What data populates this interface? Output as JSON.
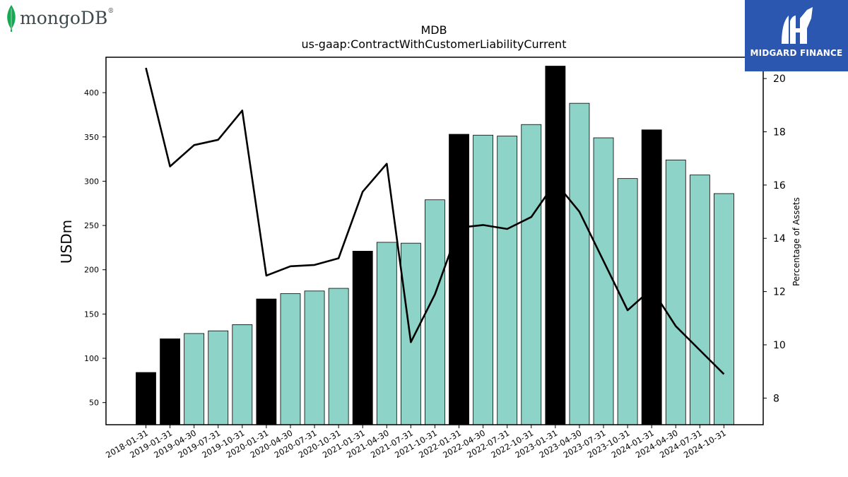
{
  "logos": {
    "left": {
      "text": "mongoDB",
      "registered": "®",
      "icon": "leaf-icon",
      "color": "#13aa52"
    },
    "right": {
      "text": "MIDGARD FINANCE",
      "icon": "midgard-logo-icon",
      "background": "#2b57b0"
    }
  },
  "chart_data": {
    "type": "bar",
    "title": "MDB",
    "subtitle": "us-gaap:ContractWithCustomerLiabilityCurrent",
    "ylabel": "USDm",
    "y2label": "Percentage of Assets",
    "ylim": [
      25,
      440
    ],
    "y2lim": [
      7,
      20.8
    ],
    "yticks": [
      50,
      100,
      150,
      200,
      250,
      300,
      350,
      400
    ],
    "y2ticks": [
      8,
      10,
      12,
      14,
      16,
      18,
      20
    ],
    "categories": [
      "2018-01-31",
      "2019-01-31",
      "2019-04-30",
      "2019-07-31",
      "2019-10-31",
      "2020-01-31",
      "2020-04-30",
      "2020-07-31",
      "2020-10-31",
      "2021-01-31",
      "2021-04-30",
      "2021-07-31",
      "2021-10-31",
      "2022-01-31",
      "2022-04-30",
      "2022-07-31",
      "2022-10-31",
      "2023-01-31",
      "2023-04-30",
      "2023-07-31",
      "2023-10-31",
      "2024-01-31",
      "2024-04-30",
      "2024-07-31",
      "2024-10-31"
    ],
    "values": [
      84,
      122,
      128,
      131,
      138,
      167,
      173,
      176,
      179,
      221,
      231,
      230,
      279,
      353,
      352,
      351,
      364,
      430,
      388,
      349,
      303,
      358,
      324,
      307,
      286
    ],
    "fiscal_year_end": [
      true,
      true,
      false,
      false,
      false,
      true,
      false,
      false,
      false,
      true,
      false,
      false,
      false,
      true,
      false,
      false,
      false,
      true,
      false,
      false,
      false,
      true,
      false,
      false,
      false
    ],
    "pct_of_assets": [
      20.4,
      16.7,
      17.5,
      17.7,
      18.8,
      12.6,
      12.95,
      13.0,
      13.25,
      15.75,
      16.8,
      10.1,
      11.9,
      14.4,
      14.5,
      14.35,
      14.8,
      16.1,
      15.0,
      13.15,
      11.3,
      12.1,
      10.7,
      9.8,
      8.9
    ],
    "colors": {
      "annual_bar": "#000000",
      "quarter_bar": "#8dd3c7",
      "line": "#000000"
    },
    "grid": false,
    "legend": "none"
  }
}
